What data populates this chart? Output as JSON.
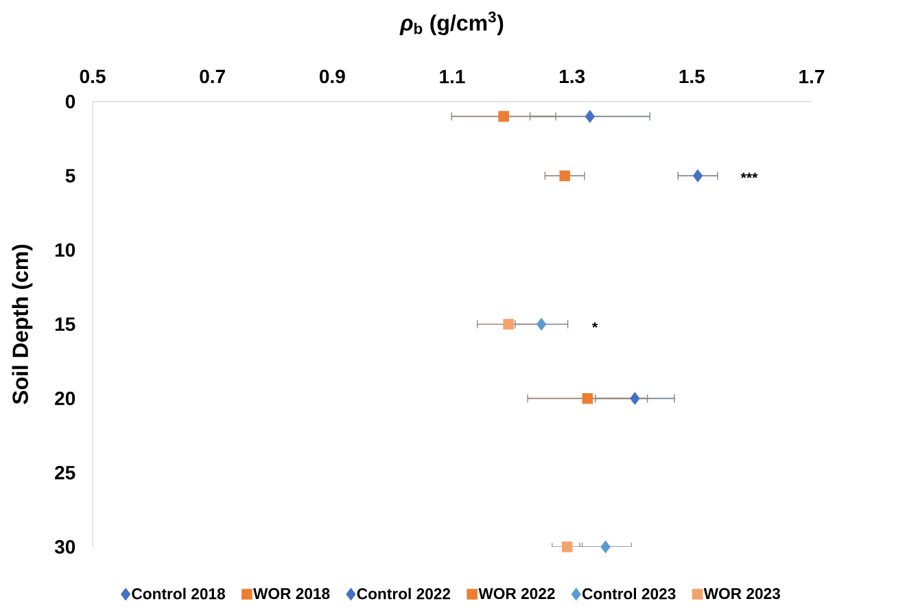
{
  "chart_data": {
    "type": "scatter",
    "xlabel": "*ρ*$_{b}$ (g/cm$^{3}$)",
    "ylabel": "Soil Depth (cm)",
    "xlim": [
      0.5,
      1.7
    ],
    "xticks": [
      0.5,
      0.7,
      0.9,
      1.1,
      1.3,
      1.5,
      1.7
    ],
    "ylim": [
      30,
      0
    ],
    "yticks": [
      0,
      5,
      10,
      15,
      20,
      25,
      30
    ],
    "legend": "bottom",
    "series": [
      {
        "name": "Control 2018",
        "color": "#4472c4",
        "marker": "diamond",
        "x": [
          1.33,
          1.405
        ],
        "values": [
          1,
          20
        ],
        "xerrors": [
          0.1,
          0.066
        ]
      },
      {
        "name": "WOR 2018",
        "color": "#ed7d31",
        "marker": "square",
        "x": [
          1.186,
          1.326
        ],
        "values": [
          1,
          20
        ],
        "xerrors": [
          0.087,
          0.1
        ]
      },
      {
        "name": "Control 2022",
        "color": "#4472c4",
        "marker": "diamond",
        "x": [
          1.51
        ],
        "values": [
          5
        ],
        "xerrors": [
          0.033
        ]
      },
      {
        "name": "WOR 2022",
        "color": "#ed7d31",
        "marker": "square",
        "x": [
          1.288
        ],
        "values": [
          5
        ],
        "xerrors": [
          0.033
        ]
      },
      {
        "name": "Control 2023",
        "color": "#5b9bd5",
        "marker": "diamond",
        "x": [
          1.249,
          1.356
        ],
        "values": [
          15,
          30
        ],
        "xerrors": [
          0.044,
          0.043
        ]
      },
      {
        "name": "WOR 2023",
        "color": "#f4a26b",
        "marker": "square",
        "x": [
          1.194,
          1.292
        ],
        "values": [
          15,
          30
        ],
        "xerrors": [
          0.052,
          0.025
        ]
      }
    ],
    "annotations": [
      "***",
      "*"
    ]
  }
}
